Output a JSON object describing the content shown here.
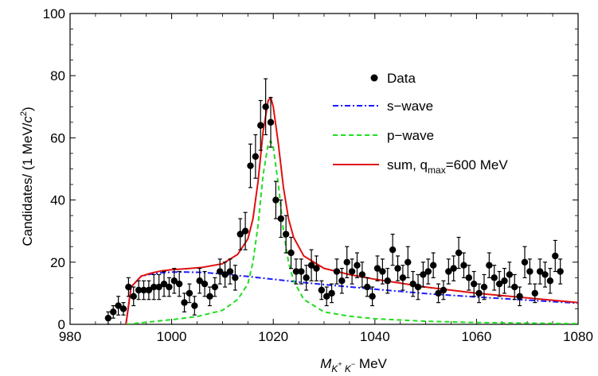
{
  "chart_data": {
    "type": "scatter",
    "xlabel": {
      "main": "M",
      "sub_prefix": "K",
      "sup1": "+",
      "mid": " K",
      "sup2": "−",
      "unit": " MeV"
    },
    "ylabel": {
      "prefix": "Candidates/ (1 MeV/",
      "c": "c",
      "sup": "2",
      "suffix": ")"
    },
    "xlim": [
      980,
      1080
    ],
    "ylim": [
      0,
      100
    ],
    "xticks": [
      980,
      1000,
      1020,
      1040,
      1060,
      1080
    ],
    "yticks": [
      0,
      20,
      40,
      60,
      80,
      100
    ],
    "legend_position": "top-right",
    "legend": [
      {
        "key": "data",
        "label": "Data"
      },
      {
        "key": "swave",
        "label": "s−wave"
      },
      {
        "key": "pwave",
        "label": "p−wave"
      },
      {
        "key": "sum",
        "label_main": "sum, q",
        "label_sub": "max",
        "label_tail": "=600 MeV"
      }
    ],
    "colors": {
      "data": "#000000",
      "swave": "#1a1aff",
      "pwave": "#22dd22",
      "sum": "#e01010"
    },
    "data_points": {
      "x": [
        987.5,
        988.5,
        989.5,
        990.5,
        991.5,
        992.5,
        993.5,
        994.5,
        995.5,
        996.5,
        997.5,
        998.5,
        999.5,
        1000.5,
        1001.5,
        1002.5,
        1003.5,
        1004.5,
        1005.5,
        1006.5,
        1007.5,
        1008.5,
        1009.5,
        1010.5,
        1011.5,
        1012.5,
        1013.5,
        1014.5,
        1015.5,
        1016.5,
        1017.5,
        1018.5,
        1019.5,
        1020.5,
        1021.5,
        1022.5,
        1023.5,
        1024.5,
        1025.5,
        1026.5,
        1027.5,
        1028.5,
        1029.5,
        1030.5,
        1031.5,
        1032.5,
        1033.5,
        1034.5,
        1035.5,
        1036.5,
        1037.5,
        1038.5,
        1039.5,
        1040.5,
        1041.5,
        1042.5,
        1043.5,
        1044.5,
        1045.5,
        1046.5,
        1047.5,
        1048.5,
        1049.5,
        1050.5,
        1051.5,
        1052.5,
        1053.5,
        1054.5,
        1055.5,
        1056.5,
        1057.5,
        1058.5,
        1059.5,
        1060.5,
        1061.5,
        1062.5,
        1063.5,
        1064.5,
        1065.5,
        1066.5,
        1067.5,
        1068.5,
        1069.5,
        1070.5,
        1071.5,
        1072.5,
        1073.5,
        1074.5,
        1075.5,
        1076.5
      ],
      "y": [
        2,
        4,
        6,
        5,
        12,
        9,
        11,
        11,
        11,
        12,
        12,
        13,
        12,
        14,
        13,
        7,
        10,
        6,
        14,
        13,
        9,
        12,
        17,
        16,
        17,
        15,
        29,
        30,
        51,
        54,
        64,
        70,
        65,
        40,
        34,
        29,
        23,
        17,
        17,
        15,
        19,
        18,
        11,
        9,
        10,
        17,
        14,
        20,
        17,
        19,
        16,
        12,
        9,
        18,
        17,
        14,
        24,
        18,
        15,
        20,
        13,
        12,
        16,
        17,
        19,
        10,
        11,
        17,
        18,
        23,
        19,
        15,
        13,
        10,
        12,
        19,
        15,
        13,
        14,
        16,
        12,
        9,
        20,
        17,
        10,
        17,
        16,
        14,
        22,
        17
      ],
      "err": [
        2,
        2,
        3,
        2,
        3,
        3,
        3,
        3,
        3,
        4,
        4,
        4,
        3,
        4,
        4,
        3,
        3,
        3,
        4,
        4,
        3,
        3,
        4,
        4,
        4,
        4,
        5,
        6,
        7,
        7,
        8,
        9,
        8,
        6,
        6,
        6,
        5,
        4,
        4,
        4,
        5,
        4,
        3,
        3,
        3,
        4,
        4,
        5,
        4,
        4,
        4,
        3,
        3,
        4,
        4,
        4,
        5,
        4,
        4,
        5,
        4,
        4,
        4,
        4,
        4,
        3,
        3,
        4,
        4,
        5,
        4,
        4,
        4,
        3,
        4,
        4,
        4,
        4,
        4,
        4,
        4,
        3,
        5,
        4,
        3,
        4,
        4,
        4,
        5,
        4
      ]
    },
    "swave": {
      "x": [
        991,
        992,
        994,
        996,
        998,
        1000,
        1003,
        1006,
        1010,
        1015,
        1020,
        1025,
        1030,
        1040,
        1050,
        1060,
        1070,
        1080
      ],
      "y": [
        0,
        12,
        15.5,
        16.2,
        16.6,
        16.8,
        16.8,
        16.7,
        16.2,
        15.4,
        14.5,
        13.6,
        12.8,
        11.3,
        9.9,
        8.8,
        7.8,
        6.8
      ]
    },
    "pwave": {
      "x": [
        991,
        1000,
        1005,
        1010,
        1013,
        1015,
        1016,
        1017,
        1018,
        1019,
        1019.5,
        1020,
        1021,
        1022,
        1023,
        1024,
        1026,
        1030,
        1035,
        1040,
        1050,
        1060,
        1080
      ],
      "y": [
        0,
        1.5,
        2.5,
        4.5,
        8,
        13,
        20,
        32,
        48,
        58,
        59,
        57,
        45,
        30,
        20,
        14,
        8,
        4,
        2.6,
        1.8,
        1,
        0.6,
        0.2
      ]
    },
    "sum": {
      "x": [
        991,
        992,
        994,
        996,
        998,
        1000,
        1003,
        1006,
        1010,
        1013,
        1015,
        1016,
        1017,
        1018,
        1019,
        1019.5,
        1020,
        1021,
        1022,
        1023,
        1024,
        1026,
        1030,
        1035,
        1040,
        1050,
        1060,
        1080
      ],
      "y": [
        0,
        12,
        15.5,
        16.5,
        17.2,
        17.6,
        17.9,
        18.3,
        19.5,
        22.5,
        27.5,
        34,
        46,
        62,
        72,
        73,
        70,
        58,
        44,
        34,
        28,
        22,
        18,
        16,
        14.5,
        12,
        10,
        7
      ]
    }
  }
}
